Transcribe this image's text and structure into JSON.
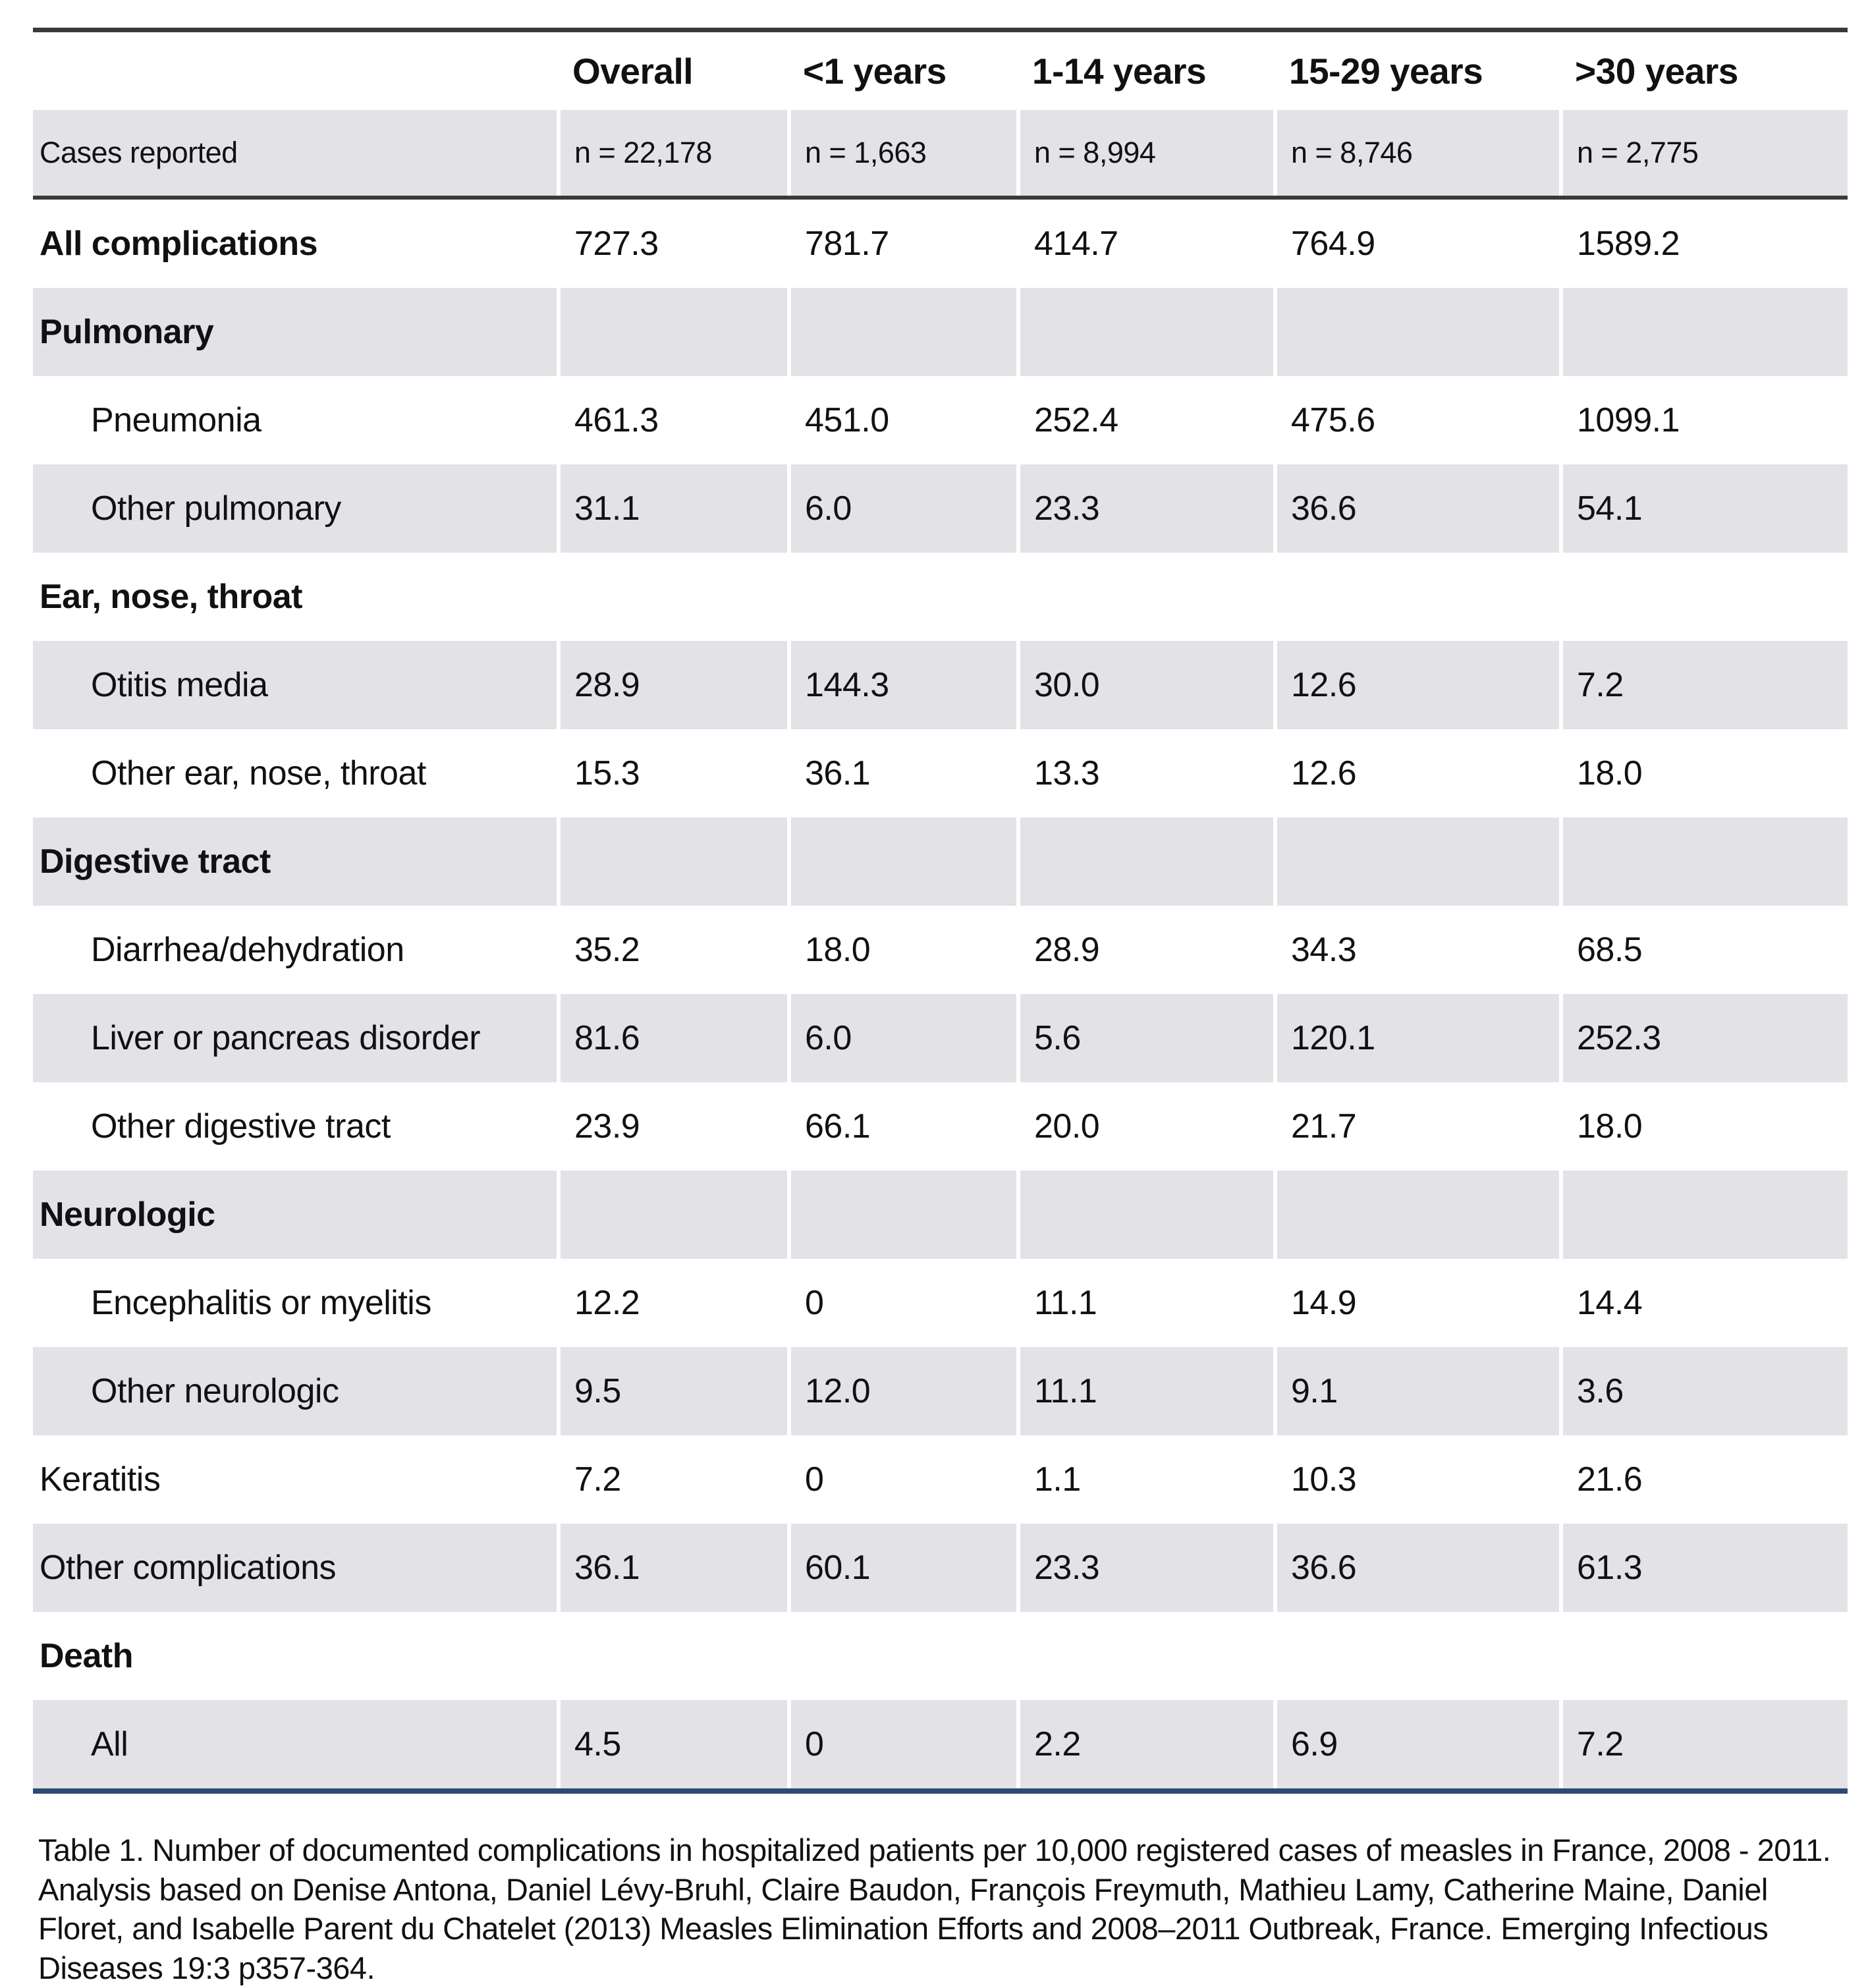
{
  "colors": {
    "row_shade": "#e3e3e7",
    "rule_dark": "#3a3a3a",
    "rule_bottom_navy": "#2c4a72",
    "text": "#111111"
  },
  "table": {
    "columns": [
      {
        "label": ""
      },
      {
        "label": "Overall"
      },
      {
        "label": "<1 years"
      },
      {
        "label": "1-14 years"
      },
      {
        "label": "15-29 years"
      },
      {
        "label": ">30 years"
      }
    ],
    "rows": [
      {
        "label": "Cases reported",
        "style": "cases",
        "values": [
          "n = 22,178",
          "n = 1,663",
          "n = 8,994",
          "n = 8,746",
          "n = 2,775"
        ]
      },
      {
        "label": "All complications",
        "style": "bold",
        "values": [
          "727.3",
          "781.7",
          "414.7",
          "764.9",
          "1589.2"
        ]
      },
      {
        "label": "Pulmonary",
        "style": "section",
        "values": [
          "",
          "",
          "",
          "",
          ""
        ]
      },
      {
        "label": "Pneumonia",
        "style": "indent",
        "values": [
          "461.3",
          "451.0",
          "252.4",
          "475.6",
          "1099.1"
        ]
      },
      {
        "label": "Other pulmonary",
        "style": "indent",
        "values": [
          "31.1",
          "6.0",
          "23.3",
          "36.6",
          "54.1"
        ]
      },
      {
        "label": "Ear, nose, throat",
        "style": "section",
        "values": [
          "",
          "",
          "",
          "",
          ""
        ]
      },
      {
        "label": "Otitis media",
        "style": "indent",
        "values": [
          "28.9",
          "144.3",
          "30.0",
          "12.6",
          "7.2"
        ]
      },
      {
        "label": "Other ear, nose, throat",
        "style": "indent",
        "values": [
          "15.3",
          "36.1",
          "13.3",
          "12.6",
          "18.0"
        ]
      },
      {
        "label": "Digestive tract",
        "style": "section",
        "values": [
          "",
          "",
          "",
          "",
          ""
        ]
      },
      {
        "label": "Diarrhea/dehydration",
        "style": "indent",
        "values": [
          "35.2",
          "18.0",
          "28.9",
          "34.3",
          "68.5"
        ]
      },
      {
        "label": "Liver or pancreas disorder",
        "style": "indent",
        "values": [
          "81.6",
          "6.0",
          "5.6",
          "120.1",
          "252.3"
        ]
      },
      {
        "label": "Other digestive tract",
        "style": "indent",
        "values": [
          "23.9",
          "66.1",
          "20.0",
          "21.7",
          "18.0"
        ]
      },
      {
        "label": "Neurologic",
        "style": "section",
        "values": [
          "",
          "",
          "",
          "",
          ""
        ]
      },
      {
        "label": "Encephalitis or myelitis",
        "style": "indent",
        "values": [
          "12.2",
          "0",
          "11.1",
          "14.9",
          "14.4"
        ]
      },
      {
        "label": "Other neurologic",
        "style": "indent",
        "values": [
          "9.5",
          "12.0",
          "11.1",
          "9.1",
          "3.6"
        ]
      },
      {
        "label": "Keratitis",
        "style": "plain",
        "values": [
          "7.2",
          "0",
          "1.1",
          "10.3",
          "21.6"
        ]
      },
      {
        "label": "Other complications",
        "style": "plain",
        "values": [
          "36.1",
          "60.1",
          "23.3",
          "36.6",
          "61.3"
        ]
      },
      {
        "label": "Death",
        "style": "section",
        "values": [
          "",
          "",
          "",
          "",
          ""
        ]
      },
      {
        "label": "All",
        "style": "indent",
        "values": [
          "4.5",
          "0",
          "2.2",
          "6.9",
          "7.2"
        ]
      }
    ]
  },
  "caption": {
    "text": "Table 1.  Number of documented complications in hospitalized patients per 10,000 registered cases of measles in France, 2008 - 2011.  Analysis based on Denise Antona, Daniel Lévy-Bruhl, Claire Baudon, François Freymuth, Mathieu Lamy, Catherine Maine, Daniel Floret, and Isabelle Parent du Chatelet (2013) Measles Elimination Efforts and 2008–2011 Outbreak, France. Emerging Infectious Diseases 19:3 p357-364."
  }
}
